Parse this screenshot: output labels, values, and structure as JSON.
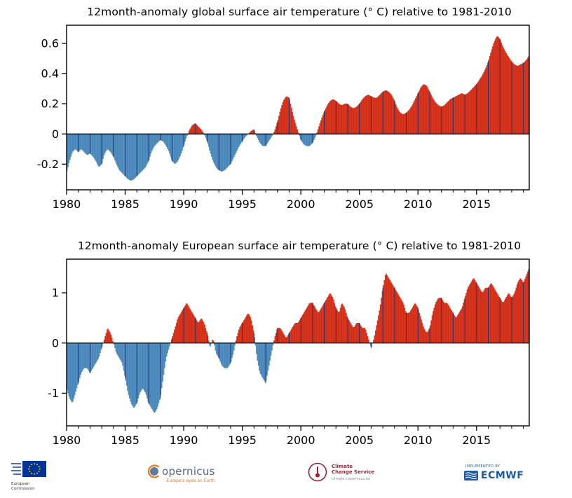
{
  "colors": {
    "positive": "#e8381f",
    "negative": "#5598cf",
    "year_line": "#1c2f6b",
    "axis": "#000000"
  },
  "chart_data": [
    {
      "type": "bar",
      "title": "12month-anomaly global surface air temperature (° C) relative to 1981-2010",
      "xlabel": "",
      "ylabel": "",
      "x_start": 1980,
      "x_step": 0.25,
      "xlim": [
        1980,
        2019.5
      ],
      "ylim": [
        -0.37,
        0.72
      ],
      "xticks": [
        1980,
        1985,
        1990,
        1995,
        2000,
        2005,
        2010,
        2015
      ],
      "yticks": [
        {
          "value": 0.6,
          "label": "0.6"
        },
        {
          "value": 0.4,
          "label": "0.4"
        },
        {
          "value": 0.2,
          "label": "0.2"
        },
        {
          "value": 0,
          "label": "0"
        },
        {
          "value": -0.2,
          "label": "-0.2"
        }
      ],
      "grid": false,
      "values": [
        -0.26,
        -0.18,
        -0.12,
        -0.1,
        -0.12,
        -0.1,
        -0.12,
        -0.14,
        -0.13,
        -0.15,
        -0.18,
        -0.22,
        -0.2,
        -0.13,
        -0.1,
        -0.12,
        -0.15,
        -0.2,
        -0.24,
        -0.26,
        -0.28,
        -0.3,
        -0.31,
        -0.3,
        -0.28,
        -0.26,
        -0.24,
        -0.22,
        -0.18,
        -0.12,
        -0.08,
        -0.06,
        -0.04,
        -0.05,
        -0.08,
        -0.12,
        -0.18,
        -0.2,
        -0.18,
        -0.14,
        -0.08,
        -0.02,
        0.03,
        0.06,
        0.07,
        0.05,
        0.03,
        0.0,
        -0.05,
        -0.12,
        -0.18,
        -0.22,
        -0.24,
        -0.25,
        -0.24,
        -0.22,
        -0.2,
        -0.16,
        -0.12,
        -0.08,
        -0.05,
        -0.02,
        0.0,
        0.02,
        0.03,
        -0.02,
        -0.06,
        -0.08,
        -0.08,
        -0.05,
        -0.02,
        0.02,
        0.08,
        0.16,
        0.22,
        0.25,
        0.24,
        0.16,
        0.08,
        0.02,
        -0.04,
        -0.07,
        -0.08,
        -0.08,
        -0.06,
        -0.02,
        0.04,
        0.1,
        0.15,
        0.19,
        0.22,
        0.23,
        0.22,
        0.2,
        0.19,
        0.2,
        0.2,
        0.18,
        0.17,
        0.18,
        0.2,
        0.23,
        0.25,
        0.26,
        0.25,
        0.24,
        0.24,
        0.26,
        0.28,
        0.29,
        0.28,
        0.26,
        0.22,
        0.17,
        0.14,
        0.13,
        0.14,
        0.16,
        0.19,
        0.23,
        0.27,
        0.31,
        0.33,
        0.32,
        0.28,
        0.24,
        0.21,
        0.19,
        0.18,
        0.19,
        0.21,
        0.23,
        0.24,
        0.25,
        0.26,
        0.27,
        0.26,
        0.27,
        0.29,
        0.31,
        0.33,
        0.36,
        0.39,
        0.43,
        0.48,
        0.55,
        0.61,
        0.65,
        0.63,
        0.58,
        0.54,
        0.51,
        0.48,
        0.46,
        0.45,
        0.46,
        0.47,
        0.49,
        0.52
      ]
    },
    {
      "type": "bar",
      "title": "12month-anomaly European surface air temperature (° C) relative to 1981-2010",
      "xlabel": "",
      "ylabel": "",
      "x_start": 1980,
      "x_step": 0.25,
      "xlim": [
        1980,
        2019.5
      ],
      "ylim": [
        -1.65,
        1.67
      ],
      "xticks": [
        1980,
        1985,
        1990,
        1995,
        2000,
        2005,
        2010,
        2015
      ],
      "yticks": [
        {
          "value": 1,
          "label": "1"
        },
        {
          "value": 0,
          "label": "0"
        },
        {
          "value": -1,
          "label": "-1"
        }
      ],
      "grid": false,
      "values": [
        -0.9,
        -1.1,
        -1.2,
        -1.0,
        -0.8,
        -0.6,
        -0.5,
        -0.5,
        -0.6,
        -0.5,
        -0.4,
        -0.3,
        -0.1,
        0.1,
        0.3,
        0.2,
        0.0,
        -0.2,
        -0.3,
        -0.4,
        -0.7,
        -1.0,
        -1.2,
        -1.3,
        -1.2,
        -1.0,
        -0.9,
        -1.0,
        -1.2,
        -1.3,
        -1.4,
        -1.3,
        -1.1,
        -0.7,
        -0.3,
        -0.1,
        0.1,
        0.3,
        0.5,
        0.6,
        0.7,
        0.8,
        0.7,
        0.6,
        0.5,
        0.4,
        0.5,
        0.4,
        0.2,
        -0.1,
        0.1,
        -0.2,
        -0.3,
        -0.45,
        -0.5,
        -0.5,
        -0.4,
        -0.2,
        0.1,
        0.3,
        0.4,
        0.5,
        0.6,
        0.5,
        0.2,
        -0.3,
        -0.6,
        -0.7,
        -0.8,
        -0.5,
        -0.2,
        0.1,
        0.3,
        0.3,
        0.2,
        0.1,
        0.2,
        0.3,
        0.4,
        0.4,
        0.5,
        0.6,
        0.7,
        0.8,
        0.8,
        0.7,
        0.6,
        0.7,
        0.8,
        0.9,
        1.0,
        0.9,
        0.7,
        0.6,
        0.8,
        0.7,
        0.5,
        0.4,
        0.3,
        0.4,
        0.4,
        0.3,
        0.3,
        0.1,
        -0.1,
        0.1,
        0.4,
        0.7,
        1.1,
        1.4,
        1.3,
        1.2,
        1.1,
        1.0,
        0.9,
        0.8,
        0.6,
        0.6,
        0.7,
        0.8,
        0.7,
        0.5,
        0.3,
        0.2,
        0.3,
        0.6,
        0.8,
        0.9,
        0.9,
        0.8,
        0.8,
        0.7,
        0.6,
        0.5,
        0.6,
        0.7,
        0.9,
        1.1,
        1.2,
        1.3,
        1.2,
        1.1,
        1.0,
        1.1,
        1.1,
        1.2,
        1.1,
        1.0,
        0.9,
        0.8,
        0.9,
        1.0,
        0.9,
        1.0,
        1.2,
        1.3,
        1.2,
        1.35,
        1.5
      ]
    }
  ],
  "footer": {
    "eu": {
      "line1": "European",
      "line2": "Commission"
    },
    "copernicus": {
      "name": "opernicus",
      "tagline": "Europe's eyes on Earth"
    },
    "climate": {
      "line1": "Climate",
      "line2": "Change Service",
      "url": "climate.copernicus.eu"
    },
    "ecmwf": {
      "implemented": "IMPLEMENTED BY",
      "name": "ECMWF"
    }
  }
}
